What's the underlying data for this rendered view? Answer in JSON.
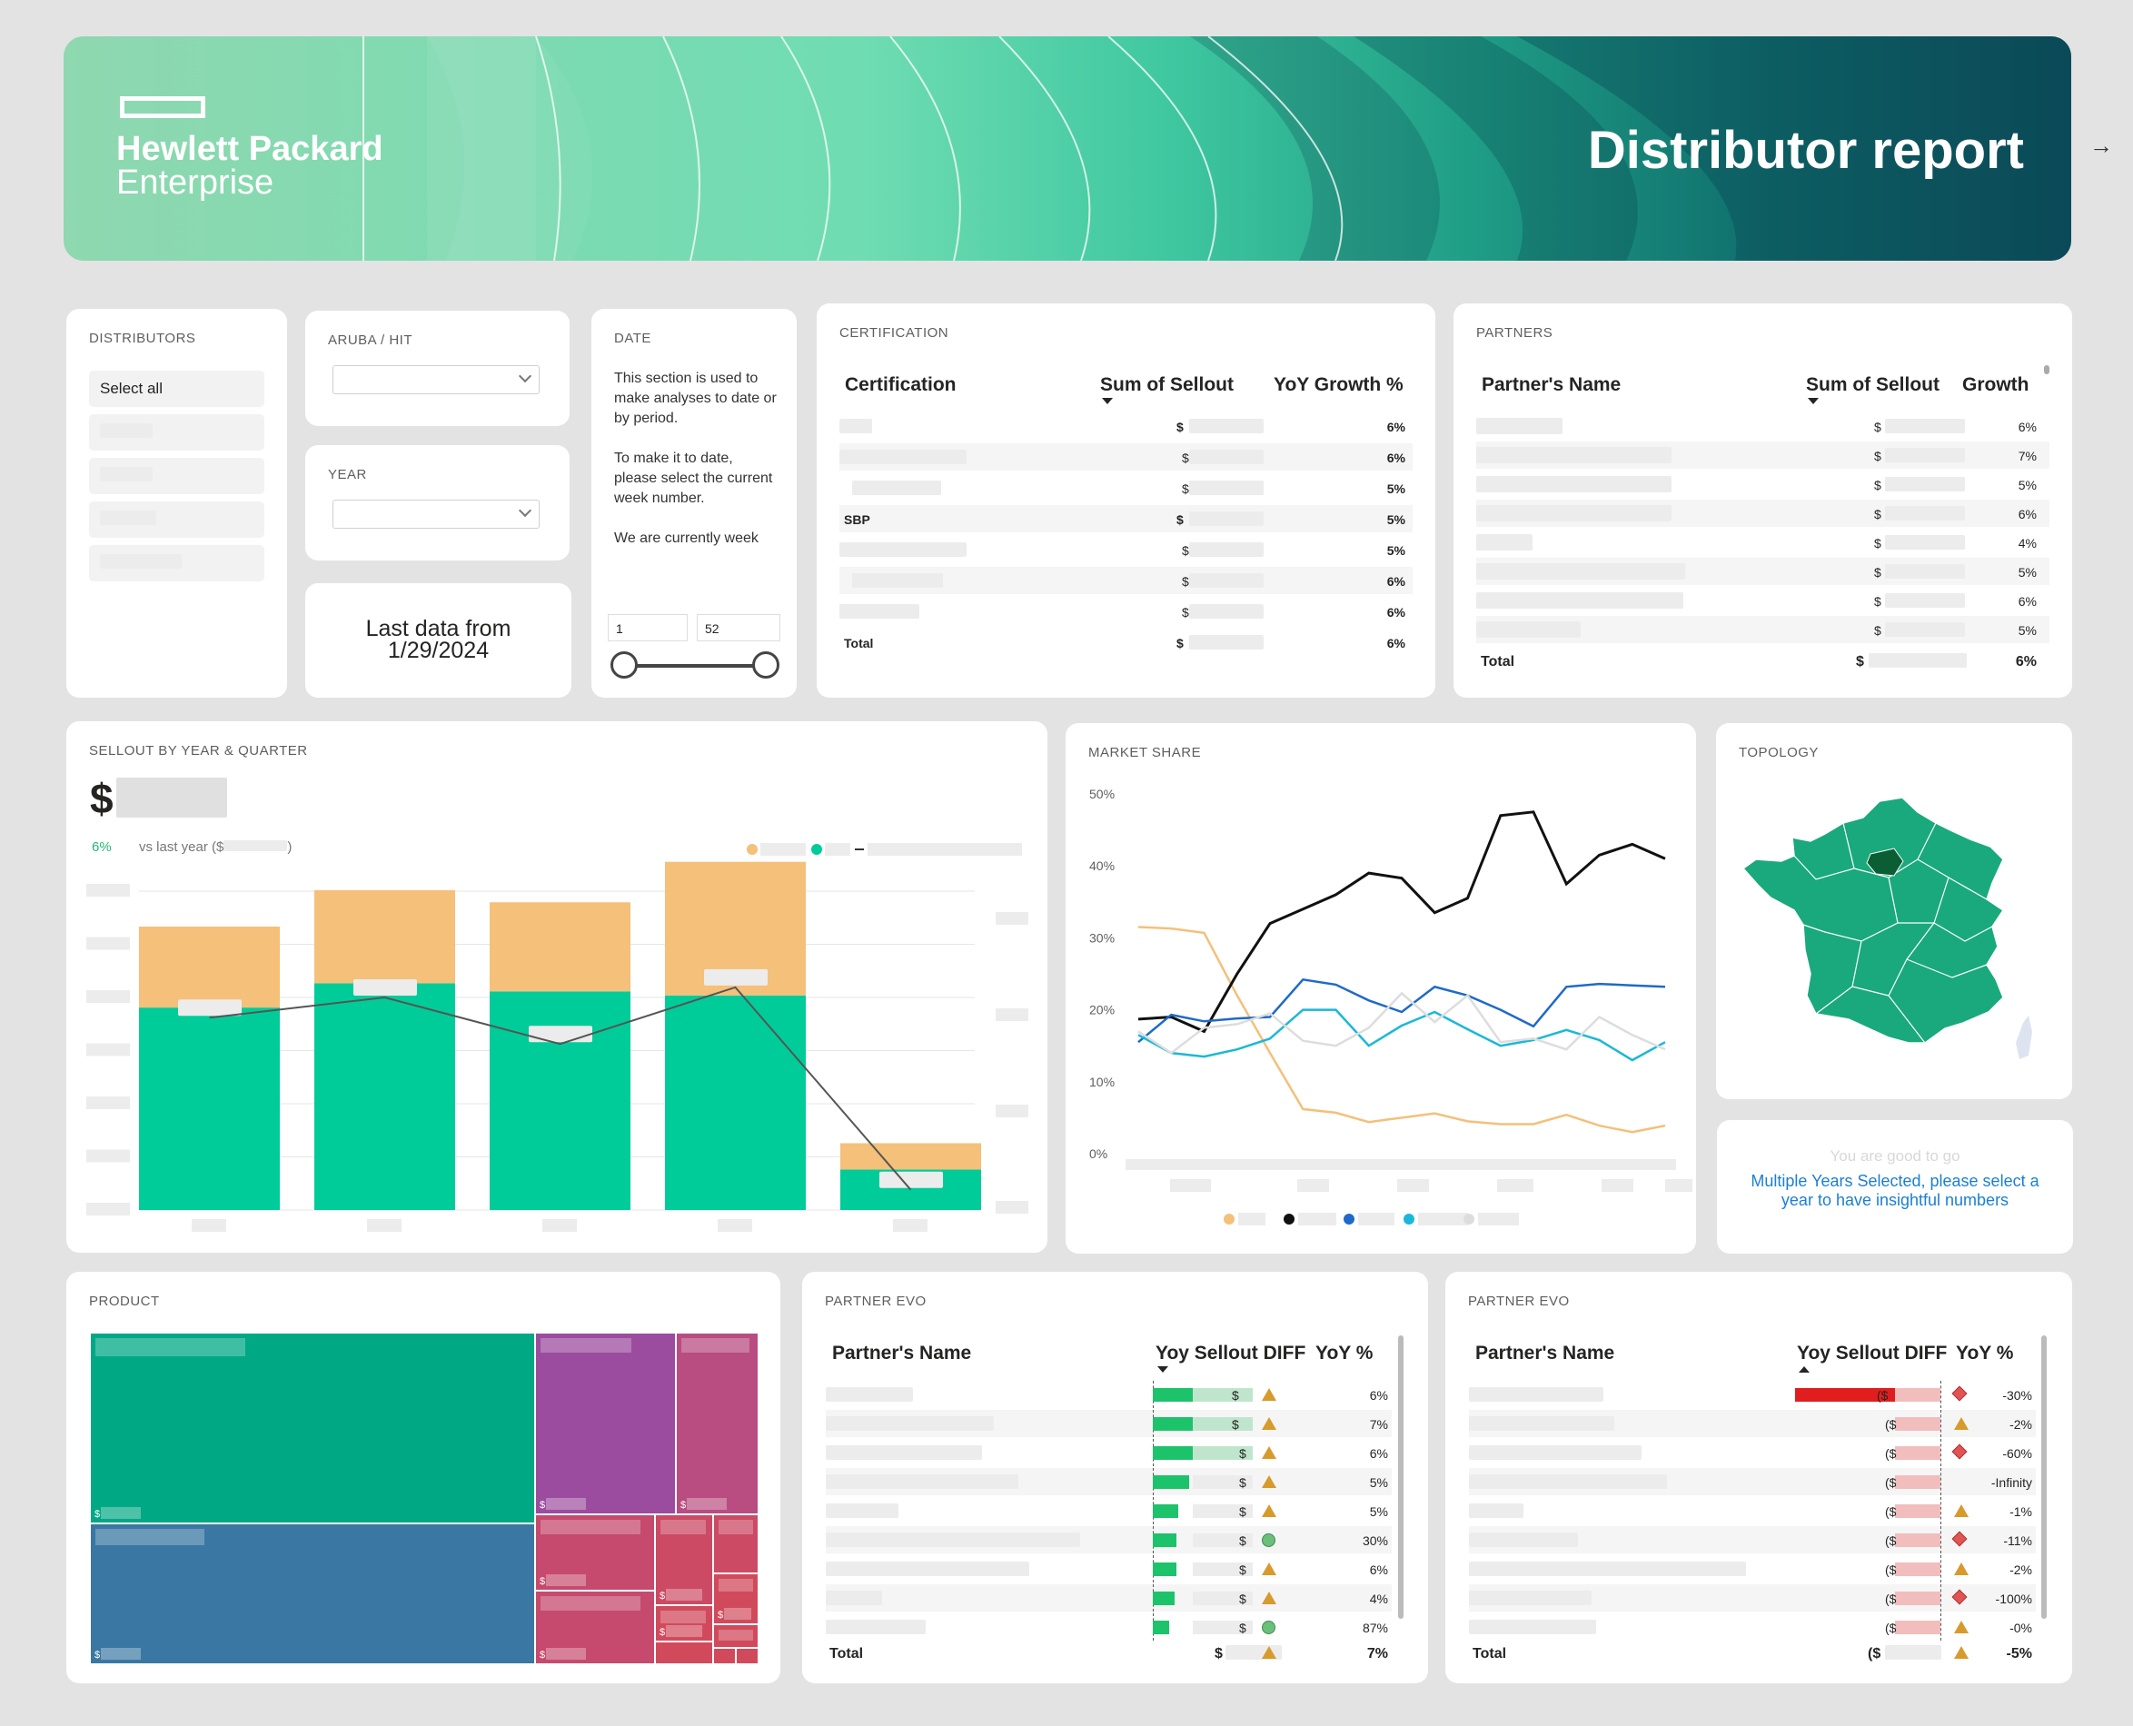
{
  "header": {
    "logo_line1": "Hewlett Packard",
    "logo_line2": "Enterprise",
    "title": "Distributor report",
    "nav_arrow": "→"
  },
  "distributors": {
    "title": "DISTRIBUTORS",
    "select_all": "Select all"
  },
  "aruba": {
    "title": "ARUBA / HIT"
  },
  "year": {
    "title": "YEAR"
  },
  "last_data": {
    "line1": "Last data from",
    "line2": "1/29/2024"
  },
  "date": {
    "title": "DATE",
    "text1": "This section is used to make analyses to date or by period.",
    "text2": "To make it to date, please select the current week number.",
    "text3": "We are currently week",
    "min": "1",
    "max": "52"
  },
  "certification": {
    "title": "CERTIFICATION",
    "headers": [
      "Certification",
      "Sum of Sellout",
      "YoY Growth %"
    ],
    "rows": [
      {
        "name": "",
        "cur": "$",
        "pct": "6%"
      },
      {
        "name": "",
        "cur": "$",
        "pct": "6%"
      },
      {
        "name": "",
        "cur": "$",
        "pct": "5%"
      },
      {
        "name": "SBP",
        "cur": "$",
        "pct": "5%"
      },
      {
        "name": "",
        "cur": "$",
        "pct": "5%"
      },
      {
        "name": "",
        "cur": "$",
        "pct": "6%"
      },
      {
        "name": "",
        "cur": "$",
        "pct": "6%"
      }
    ],
    "total": {
      "name": "Total",
      "cur": "$",
      "pct": "6%"
    }
  },
  "partners": {
    "title": "PARTNERS",
    "headers": [
      "Partner's Name",
      "Sum of Sellout",
      "Growth"
    ],
    "rows": [
      {
        "cur": "$",
        "pct": "6%"
      },
      {
        "cur": "$",
        "pct": "7%"
      },
      {
        "cur": "$",
        "pct": "5%"
      },
      {
        "cur": "$",
        "pct": "6%"
      },
      {
        "cur": "$",
        "pct": "4%"
      },
      {
        "cur": "$",
        "pct": "5%"
      },
      {
        "cur": "$",
        "pct": "6%"
      },
      {
        "cur": "$",
        "pct": "5%"
      }
    ],
    "total": {
      "name": "Total",
      "cur": "$",
      "pct": "6%"
    }
  },
  "sellout": {
    "title": "SELLOUT BY YEAR & QUARTER",
    "kpi_symbol": "$",
    "growth": "6%",
    "vs_text": "vs last year ($",
    "vs_close": ")"
  },
  "market_share": {
    "title": "MARKET SHARE"
  },
  "topology": {
    "title": "TOPOLOGY"
  },
  "message": {
    "faded": "You are good to go",
    "text": "Multiple Years Selected, please select a year to have insightful numbers"
  },
  "product": {
    "title": "PRODUCT"
  },
  "partner_evo1": {
    "title": "PARTNER EVO",
    "headers": [
      "Partner's Name",
      "Yoy Sellout DIFF",
      "YoY %"
    ],
    "rows": [
      {
        "cur": "$",
        "pct": "6%",
        "icon": "triangle"
      },
      {
        "cur": "$",
        "pct": "7%",
        "icon": "triangle"
      },
      {
        "cur": "$",
        "pct": "6%",
        "icon": "triangle"
      },
      {
        "cur": "$",
        "pct": "5%",
        "icon": "triangle"
      },
      {
        "cur": "$",
        "pct": "5%",
        "icon": "triangle"
      },
      {
        "cur": "$",
        "pct": "30%",
        "icon": "circle"
      },
      {
        "cur": "$",
        "pct": "6%",
        "icon": "triangle"
      },
      {
        "cur": "$",
        "pct": "4%",
        "icon": "triangle"
      },
      {
        "cur": "$",
        "pct": "87%",
        "icon": "circle"
      }
    ],
    "total": {
      "name": "Total",
      "cur": "$",
      "pct": "7%"
    }
  },
  "partner_evo2": {
    "title": "PARTNER EVO",
    "headers": [
      "Partner's Name",
      "Yoy Sellout DIFF",
      "YoY %"
    ],
    "rows": [
      {
        "cur": "($",
        "pct": "-30%",
        "icon": "diamond"
      },
      {
        "cur": "($",
        "pct": "-2%",
        "icon": "triangle"
      },
      {
        "cur": "($",
        "pct": "-60%",
        "icon": "diamond"
      },
      {
        "cur": "($",
        "pct": "-Infinity",
        "icon": "none"
      },
      {
        "cur": "($",
        "pct": "-1%",
        "icon": "triangle"
      },
      {
        "cur": "($",
        "pct": "-11%",
        "icon": "diamond"
      },
      {
        "cur": "($",
        "pct": "-2%",
        "icon": "triangle"
      },
      {
        "cur": "($",
        "pct": "-100%",
        "icon": "diamond"
      },
      {
        "cur": "($",
        "pct": "-0%",
        "icon": "triangle"
      }
    ],
    "total": {
      "name": "Total",
      "cur": "($",
      "pct": "-5%"
    }
  },
  "chart_data": [
    {
      "type": "bar",
      "title": "SELLOUT BY YEAR & QUARTER",
      "categories": [
        "",
        "",
        "",
        "",
        ""
      ],
      "series": [
        {
          "values": [
            1.0,
            1.12,
            1.08,
            1.06,
            0.2
          ],
          "color": "#00cc99"
        },
        {
          "values": [
            0.4,
            0.46,
            0.44,
            0.66,
            0.13
          ],
          "color": "#f4c07a"
        }
      ],
      "line": [
        0.95,
        1.05,
        0.82,
        1.1,
        0.1
      ],
      "ylim": [
        0,
        1.75
      ]
    },
    {
      "type": "line",
      "title": "MARKET SHARE",
      "y_ticks": [
        "0%",
        "10%",
        "20%",
        "30%",
        "40%",
        "50%"
      ],
      "ylim": [
        0,
        50
      ],
      "series": [
        {
          "color": "#f4c07a",
          "values": [
            31.5,
            31.3,
            30.7,
            22,
            14,
            6.2,
            5.7,
            4.4,
            5,
            5.6,
            4.5,
            4.1,
            4.1,
            5.4,
            3.9,
            3,
            3.9
          ]
        },
        {
          "color": "#111111",
          "values": [
            18.7,
            19,
            17,
            25,
            32,
            34,
            36,
            39,
            38.3,
            33.5,
            35.5,
            47,
            47.5,
            37.5,
            41.5,
            43,
            41
          ]
        },
        {
          "color": "#1e6ac8",
          "values": [
            15.5,
            19.3,
            18.4,
            18.8,
            19,
            24.2,
            23.5,
            21.3,
            19.7,
            23.2,
            22,
            20,
            17.7,
            23.2,
            23.6,
            23.4,
            23.2
          ]
        },
        {
          "color": "#1ab8d8",
          "values": [
            16.5,
            14,
            13.5,
            14.5,
            16,
            20,
            20,
            15,
            17.8,
            19.7,
            17.3,
            15,
            15.8,
            17.2,
            15.8,
            13,
            15.5
          ]
        },
        {
          "color": "#dddddd",
          "values": [
            17,
            14,
            17.5,
            18,
            19.5,
            15.7,
            15,
            17.5,
            22.3,
            18.3,
            22,
            15.5,
            16,
            14.5,
            19,
            16.5,
            14.5
          ]
        }
      ]
    }
  ]
}
